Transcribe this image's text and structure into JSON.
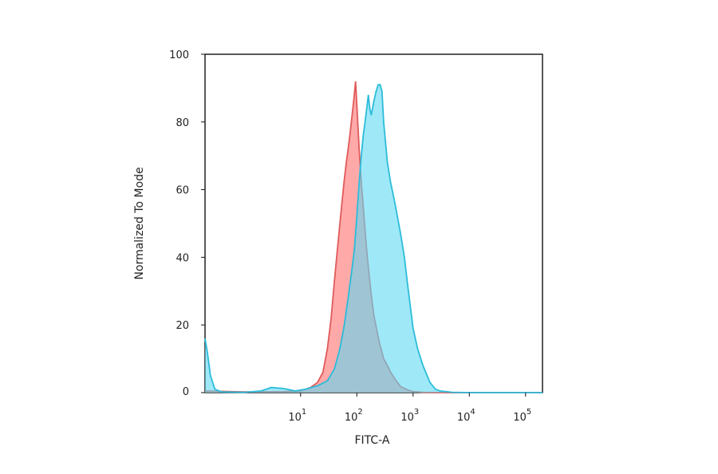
{
  "chart_data": {
    "type": "area",
    "title": "",
    "xlabel": "FITC-A",
    "ylabel": "Normalized To Mode",
    "x_scale": "log",
    "xlim": [
      0.2,
      200000
    ],
    "ylim": [
      0,
      100
    ],
    "x_ticks": [
      {
        "value": 10,
        "base": "10",
        "exp": "1"
      },
      {
        "value": 100,
        "base": "10",
        "exp": "2"
      },
      {
        "value": 1000,
        "base": "10",
        "exp": "3"
      },
      {
        "value": 10000,
        "base": "10",
        "exp": "4"
      },
      {
        "value": 100000,
        "base": "10",
        "exp": "5"
      }
    ],
    "y_ticks": [
      0,
      20,
      40,
      60,
      80,
      100
    ],
    "grid": false,
    "legend": "none",
    "series": [
      {
        "color_fill": "#ff8c8c",
        "color_line": "#e05a5a",
        "fill_opacity": 0.75,
        "points": [
          [
            0.2,
            0.5
          ],
          [
            1,
            0.2
          ],
          [
            5,
            0.3
          ],
          [
            10,
            0.5
          ],
          [
            15,
            1.5
          ],
          [
            20,
            3
          ],
          [
            25,
            6
          ],
          [
            30,
            13
          ],
          [
            35,
            22
          ],
          [
            40,
            33
          ],
          [
            45,
            42
          ],
          [
            50,
            50
          ],
          [
            55,
            57
          ],
          [
            60,
            63
          ],
          [
            65,
            68
          ],
          [
            70,
            72
          ],
          [
            75,
            76
          ],
          [
            80,
            80
          ],
          [
            85,
            84
          ],
          [
            90,
            88
          ],
          [
            95,
            92
          ],
          [
            100,
            85
          ],
          [
            110,
            72
          ],
          [
            120,
            62
          ],
          [
            130,
            55
          ],
          [
            140,
            48
          ],
          [
            150,
            42
          ],
          [
            160,
            37
          ],
          [
            180,
            29
          ],
          [
            200,
            23
          ],
          [
            250,
            15
          ],
          [
            300,
            10
          ],
          [
            350,
            8
          ],
          [
            400,
            6
          ],
          [
            500,
            3.5
          ],
          [
            600,
            1.8
          ],
          [
            800,
            0.8
          ],
          [
            1000,
            0.3
          ],
          [
            1500,
            0.1
          ],
          [
            3000,
            0
          ],
          [
            200000,
            0
          ]
        ]
      },
      {
        "color_fill": "#5fd8f2",
        "color_line": "#2bbcd9",
        "fill_opacity": 0.6,
        "points": [
          [
            0.2,
            16
          ],
          [
            0.22,
            12
          ],
          [
            0.25,
            5
          ],
          [
            0.3,
            1
          ],
          [
            0.4,
            0.2
          ],
          [
            1,
            0.1
          ],
          [
            2,
            0.5
          ],
          [
            3,
            1.5
          ],
          [
            5,
            1.2
          ],
          [
            8,
            0.5
          ],
          [
            12,
            1
          ],
          [
            20,
            2
          ],
          [
            30,
            3.5
          ],
          [
            40,
            7
          ],
          [
            50,
            13
          ],
          [
            60,
            20
          ],
          [
            70,
            28
          ],
          [
            80,
            35
          ],
          [
            90,
            42
          ],
          [
            100,
            52
          ],
          [
            110,
            62
          ],
          [
            120,
            70
          ],
          [
            130,
            76
          ],
          [
            140,
            80
          ],
          [
            150,
            84
          ],
          [
            160,
            88
          ],
          [
            170,
            84
          ],
          [
            180,
            82
          ],
          [
            200,
            86
          ],
          [
            220,
            89
          ],
          [
            240,
            91
          ],
          [
            260,
            91
          ],
          [
            280,
            89
          ],
          [
            300,
            80
          ],
          [
            350,
            68
          ],
          [
            400,
            62
          ],
          [
            450,
            58
          ],
          [
            500,
            54
          ],
          [
            600,
            47
          ],
          [
            700,
            40
          ],
          [
            800,
            32
          ],
          [
            900,
            25
          ],
          [
            1000,
            19
          ],
          [
            1200,
            13
          ],
          [
            1500,
            8
          ],
          [
            2000,
            3
          ],
          [
            2500,
            1
          ],
          [
            3000,
            0.5
          ],
          [
            5000,
            0.1
          ],
          [
            10000,
            0
          ],
          [
            200000,
            0
          ]
        ]
      }
    ]
  }
}
